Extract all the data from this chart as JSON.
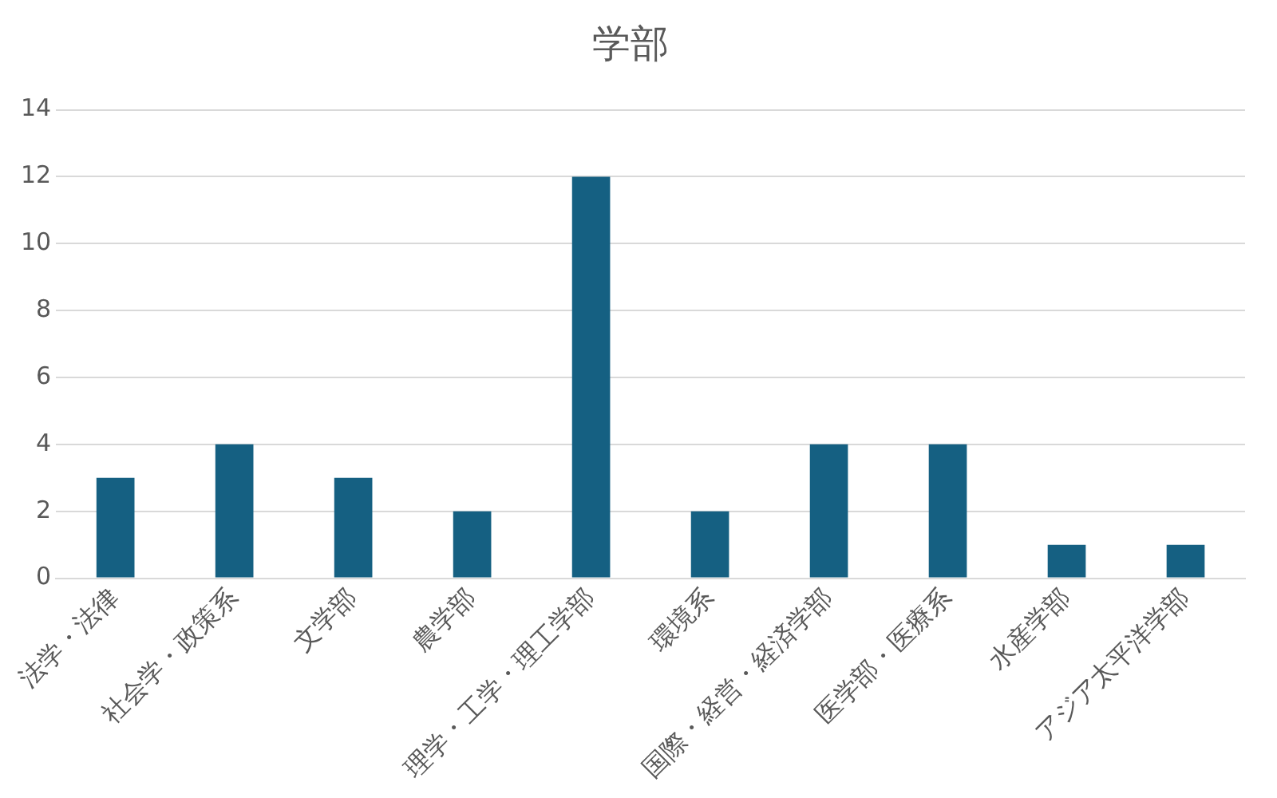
{
  "chart_data": {
    "type": "bar",
    "title": "学部",
    "categories": [
      "法学・法律",
      "社会学・政策系",
      "文学部",
      "農学部",
      "理学・工学・理工学部",
      "環境系",
      "国際・経営・経済学部",
      "医学部・医療系",
      "水産学部",
      "アジア太平洋学部"
    ],
    "values": [
      3,
      4,
      3,
      2,
      12,
      2,
      4,
      4,
      1,
      1
    ],
    "color": "#156082",
    "ylim": [
      0,
      14
    ],
    "yticks": [
      0,
      2,
      4,
      6,
      8,
      10,
      12,
      14
    ],
    "grid": "y",
    "legend": false
  }
}
